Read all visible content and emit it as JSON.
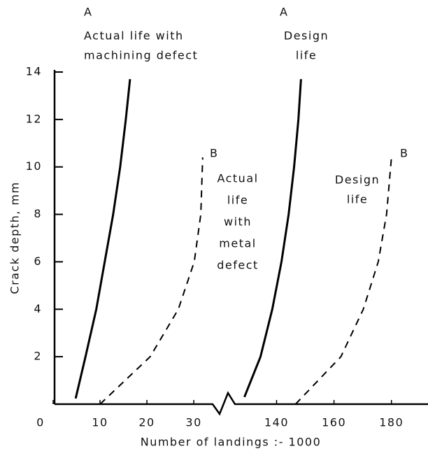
{
  "chart_data": {
    "type": "line",
    "ylabel": "Crack depth, mm",
    "xlabel": "Number of landings :- 1000",
    "ylim": [
      0,
      14
    ],
    "yticks": [
      2,
      4,
      6,
      8,
      10,
      12,
      14
    ],
    "xsegments": [
      {
        "xlim": [
          0,
          37
        ],
        "xticks": [
          0,
          10,
          20,
          30
        ]
      },
      {
        "xlim": [
          126,
          192
        ],
        "xticks": [
          140,
          160,
          180
        ]
      }
    ],
    "series": [
      {
        "name": "A",
        "segment": 0,
        "dashed": false,
        "color": "#000000",
        "x": [
          4.8,
          6.9,
          9.2,
          11,
          12.8,
          14.3,
          15.5,
          16.4
        ],
        "values": [
          0.24,
          2,
          4,
          6,
          8,
          10,
          12,
          13.7
        ]
      },
      {
        "name": "B",
        "segment": 0,
        "dashed": true,
        "color": "#000000",
        "x": [
          10,
          20.7,
          26.7,
          30.1,
          31.5,
          31.9
        ],
        "values": [
          0,
          2,
          4,
          6,
          8,
          10.4
        ]
      },
      {
        "name": "A",
        "segment": 1,
        "dashed": false,
        "color": "#000000",
        "x": [
          128.8,
          134.4,
          138.5,
          141.7,
          144.2,
          146.1,
          147.6,
          148.5
        ],
        "values": [
          0.3,
          2,
          4,
          6,
          8,
          10,
          12,
          13.7
        ]
      },
      {
        "name": "B",
        "segment": 1,
        "dashed": true,
        "color": "#000000",
        "x": [
          146.6,
          162.4,
          170.2,
          175.4,
          178.3,
          180
        ],
        "values": [
          0,
          2,
          4,
          6,
          8,
          10.4
        ]
      }
    ],
    "annotations": [
      [
        "Actual life with",
        "machining defect"
      ],
      [
        "Design",
        "life"
      ],
      [
        "Actual",
        "life",
        "with",
        "metal",
        "defect"
      ],
      [
        "Design",
        "life"
      ]
    ]
  }
}
